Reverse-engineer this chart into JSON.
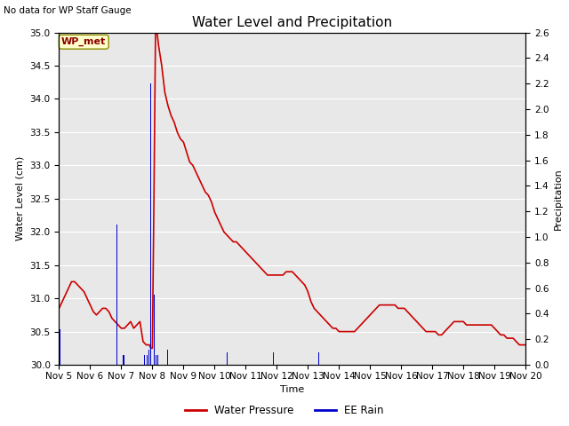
{
  "title": "Water Level and Precipitation",
  "top_left_text": "No data for WP Staff Gauge",
  "ylabel_left": "Water Level (cm)",
  "ylabel_right": "Precipitation",
  "xlabel": "Time",
  "ylim_left": [
    30.0,
    35.0
  ],
  "ylim_right": [
    0.0,
    2.6
  ],
  "yticks_left": [
    30.0,
    30.5,
    31.0,
    31.5,
    32.0,
    32.5,
    33.0,
    33.5,
    34.0,
    34.5,
    35.0
  ],
  "yticks_right": [
    0.0,
    0.2,
    0.4,
    0.6,
    0.8,
    1.0,
    1.2,
    1.4,
    1.6,
    1.8,
    2.0,
    2.2,
    2.4,
    2.6
  ],
  "xtick_labels": [
    "Nov 5",
    "Nov 6",
    "Nov 7",
    "Nov 8",
    "Nov 9",
    "Nov 10",
    "Nov 11",
    "Nov 12",
    "Nov 13",
    "Nov 14",
    "Nov 15",
    "Nov 16",
    "Nov 17",
    "Nov 18",
    "Nov 19",
    "Nov 20"
  ],
  "xtick_positions": [
    5,
    6,
    7,
    8,
    9,
    10,
    11,
    12,
    13,
    14,
    15,
    16,
    17,
    18,
    19,
    20
  ],
  "water_pressure_color": "#cc0000",
  "rain_color": "#0000cc",
  "bg_color": "#e8e8e8",
  "legend_label_wp": "Water Pressure",
  "legend_label_rain": "EE Rain",
  "wp_met_label": "WP_met",
  "water_pressure_x": [
    5.0,
    5.05,
    5.1,
    5.15,
    5.2,
    5.25,
    5.3,
    5.35,
    5.4,
    5.5,
    5.6,
    5.7,
    5.8,
    5.9,
    6.0,
    6.1,
    6.2,
    6.3,
    6.4,
    6.5,
    6.6,
    6.7,
    6.8,
    6.9,
    7.0,
    7.1,
    7.2,
    7.3,
    7.4,
    7.5,
    7.6,
    7.7,
    7.8,
    7.9,
    7.95,
    8.0,
    8.05,
    8.1,
    8.15,
    8.2,
    8.3,
    8.4,
    8.5,
    8.6,
    8.7,
    8.8,
    8.9,
    9.0,
    9.1,
    9.2,
    9.3,
    9.4,
    9.5,
    9.6,
    9.7,
    9.8,
    9.9,
    10.0,
    10.1,
    10.2,
    10.3,
    10.4,
    10.5,
    10.6,
    10.7,
    10.8,
    10.9,
    11.0,
    11.1,
    11.2,
    11.3,
    11.4,
    11.5,
    11.6,
    11.7,
    11.8,
    11.9,
    12.0,
    12.1,
    12.2,
    12.3,
    12.4,
    12.5,
    12.6,
    12.7,
    12.8,
    12.9,
    13.0,
    13.1,
    13.2,
    13.3,
    13.4,
    13.5,
    13.6,
    13.7,
    13.8,
    13.9,
    14.0,
    14.1,
    14.2,
    14.3,
    14.4,
    14.5,
    14.6,
    14.7,
    14.8,
    14.9,
    15.0,
    15.1,
    15.2,
    15.3,
    15.4,
    15.5,
    15.6,
    15.7,
    15.8,
    15.9,
    16.0,
    16.1,
    16.2,
    16.3,
    16.4,
    16.5,
    16.6,
    16.7,
    16.8,
    16.9,
    17.0,
    17.1,
    17.2,
    17.3,
    17.4,
    17.5,
    17.6,
    17.7,
    17.8,
    17.9,
    18.0,
    18.1,
    18.2,
    18.3,
    18.4,
    18.5,
    18.6,
    18.7,
    18.8,
    18.9,
    19.0,
    19.1,
    19.2,
    19.3,
    19.4,
    19.5,
    19.6,
    19.7,
    19.8,
    19.9,
    20.0
  ],
  "water_pressure_y": [
    30.85,
    30.9,
    30.95,
    31.0,
    31.05,
    31.1,
    31.15,
    31.2,
    31.25,
    31.25,
    31.2,
    31.15,
    31.1,
    31.0,
    30.9,
    30.8,
    30.75,
    30.8,
    30.85,
    30.85,
    30.8,
    30.7,
    30.65,
    30.6,
    30.55,
    30.55,
    30.6,
    30.65,
    30.55,
    30.6,
    30.65,
    30.35,
    30.3,
    30.3,
    30.25,
    30.25,
    32.5,
    35.0,
    35.0,
    34.8,
    34.5,
    34.1,
    33.9,
    33.75,
    33.65,
    33.5,
    33.4,
    33.35,
    33.2,
    33.05,
    33.0,
    32.9,
    32.8,
    32.7,
    32.6,
    32.55,
    32.45,
    32.3,
    32.2,
    32.1,
    32.0,
    31.95,
    31.9,
    31.85,
    31.85,
    31.8,
    31.75,
    31.7,
    31.65,
    31.6,
    31.55,
    31.5,
    31.45,
    31.4,
    31.35,
    31.35,
    31.35,
    31.35,
    31.35,
    31.35,
    31.4,
    31.4,
    31.4,
    31.35,
    31.3,
    31.25,
    31.2,
    31.1,
    30.95,
    30.85,
    30.8,
    30.75,
    30.7,
    30.65,
    30.6,
    30.55,
    30.55,
    30.5,
    30.5,
    30.5,
    30.5,
    30.5,
    30.5,
    30.55,
    30.6,
    30.65,
    30.7,
    30.75,
    30.8,
    30.85,
    30.9,
    30.9,
    30.9,
    30.9,
    30.9,
    30.9,
    30.85,
    30.85,
    30.85,
    30.8,
    30.75,
    30.7,
    30.65,
    30.6,
    30.55,
    30.5,
    30.5,
    30.5,
    30.5,
    30.45,
    30.45,
    30.5,
    30.55,
    30.6,
    30.65,
    30.65,
    30.65,
    30.65,
    30.6,
    30.6,
    30.6,
    30.6,
    30.6,
    30.6,
    30.6,
    30.6,
    30.6,
    30.55,
    30.5,
    30.45,
    30.45,
    30.4,
    30.4,
    30.4,
    30.35,
    30.3,
    30.3,
    30.3
  ],
  "rain_bars": [
    {
      "x": 5.02,
      "height": 0.28
    },
    {
      "x": 6.85,
      "height": 1.1
    },
    {
      "x": 7.05,
      "height": 0.08
    },
    {
      "x": 7.1,
      "height": 0.08
    },
    {
      "x": 7.75,
      "height": 0.08
    },
    {
      "x": 7.82,
      "height": 0.08
    },
    {
      "x": 7.88,
      "height": 0.12
    },
    {
      "x": 7.95,
      "height": 2.2
    },
    {
      "x": 8.05,
      "height": 0.55
    },
    {
      "x": 8.12,
      "height": 0.08
    },
    {
      "x": 8.17,
      "height": 0.08
    },
    {
      "x": 8.5,
      "height": 0.12
    },
    {
      "x": 10.4,
      "height": 0.1
    },
    {
      "x": 11.9,
      "height": 0.1
    },
    {
      "x": 13.35,
      "height": 0.1
    }
  ],
  "xlim": [
    5.0,
    20.0
  ],
  "bar_width": 0.025
}
